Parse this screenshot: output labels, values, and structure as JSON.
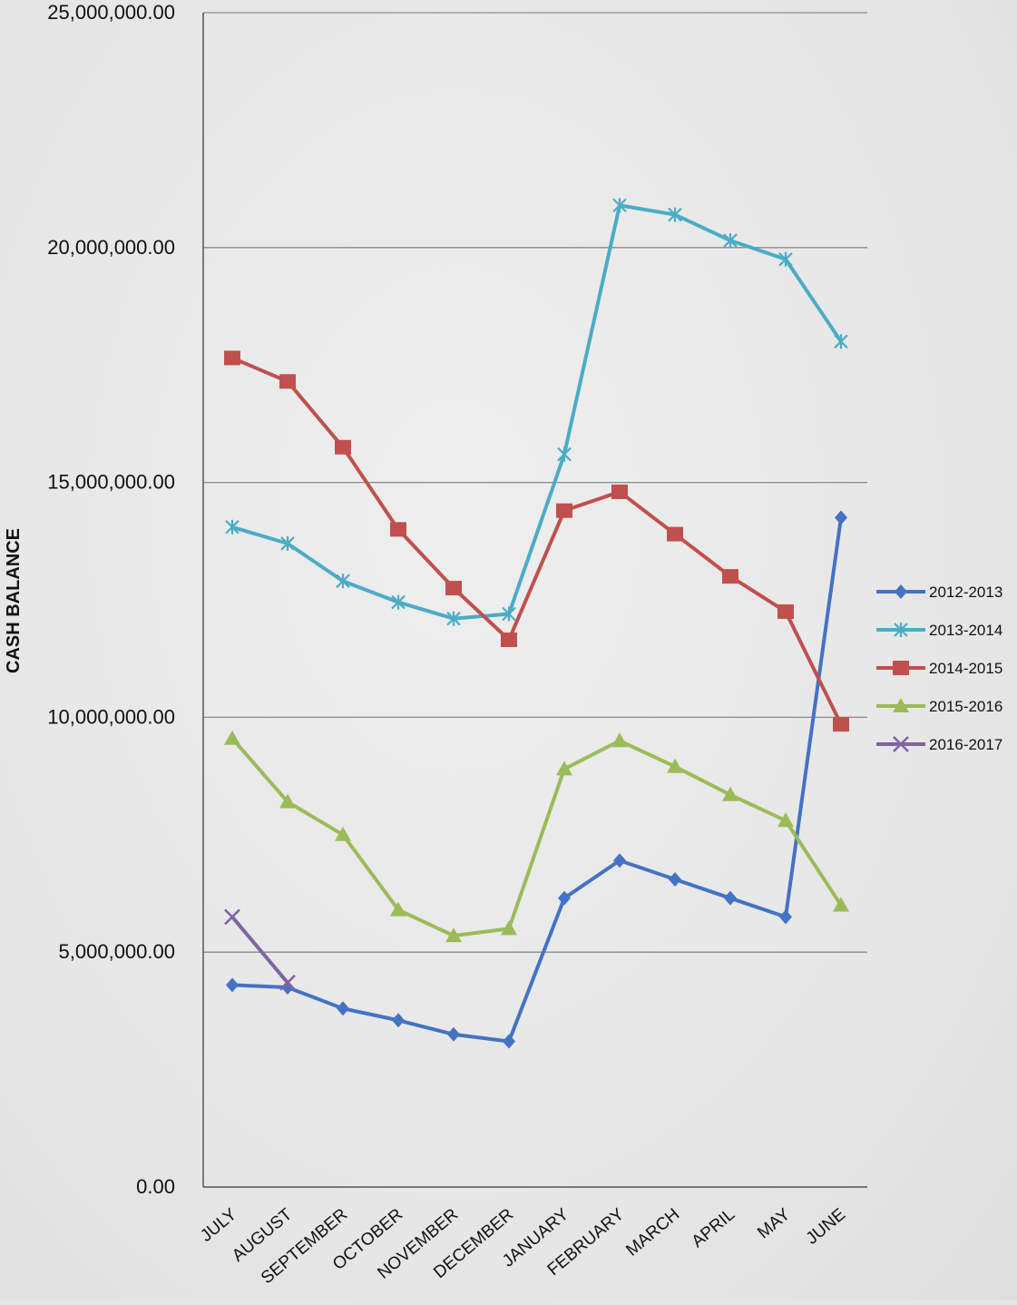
{
  "chart_data": {
    "type": "line",
    "title": "",
    "xlabel": "",
    "ylabel": "CASH BALANCE",
    "ylim": [
      0,
      25000000
    ],
    "yticks": [
      0,
      5000000,
      10000000,
      15000000,
      20000000,
      25000000
    ],
    "ytick_labels": [
      "0.00",
      "5,000,000.00",
      "10,000,000.00",
      "15,000,000.00",
      "20,000,000.00",
      "25,000,000.00"
    ],
    "grid": true,
    "legend_position": "right",
    "categories": [
      "JULY",
      "AUGUST",
      "SEPTEMBER",
      "OCTOBER",
      "NOVEMBER",
      "DECEMBER",
      "JANUARY",
      "FEBRUARY",
      "MARCH",
      "APRIL",
      "MAY",
      "JUNE"
    ],
    "series": [
      {
        "name": "2012-2013",
        "color": "#4472C4",
        "marker": "diamond",
        "values": [
          4300000,
          4250000,
          3800000,
          3550000,
          3250000,
          3100000,
          6150000,
          6950000,
          6550000,
          6150000,
          5750000,
          14250000
        ]
      },
      {
        "name": "2013-2014",
        "color": "#4BACC6",
        "marker": "star",
        "values": [
          14050000,
          13700000,
          12900000,
          12450000,
          12100000,
          12200000,
          15600000,
          20900000,
          20700000,
          20150000,
          19750000,
          18000000
        ]
      },
      {
        "name": "2014-2015",
        "color": "#C0504D",
        "marker": "square",
        "values": [
          17650000,
          17150000,
          15750000,
          14000000,
          12750000,
          11650000,
          14400000,
          14800000,
          13900000,
          13000000,
          12250000,
          9850000
        ]
      },
      {
        "name": "2015-2016",
        "color": "#9BBB59",
        "marker": "triangle",
        "values": [
          9550000,
          8200000,
          7500000,
          5900000,
          5350000,
          5500000,
          8900000,
          9500000,
          8950000,
          8350000,
          7800000,
          6000000
        ]
      },
      {
        "name": "2016-2017",
        "color": "#8064A2",
        "marker": "x",
        "values": [
          5750000,
          4350000,
          null,
          null,
          null,
          null,
          null,
          null,
          null,
          null,
          null,
          null
        ]
      }
    ]
  }
}
